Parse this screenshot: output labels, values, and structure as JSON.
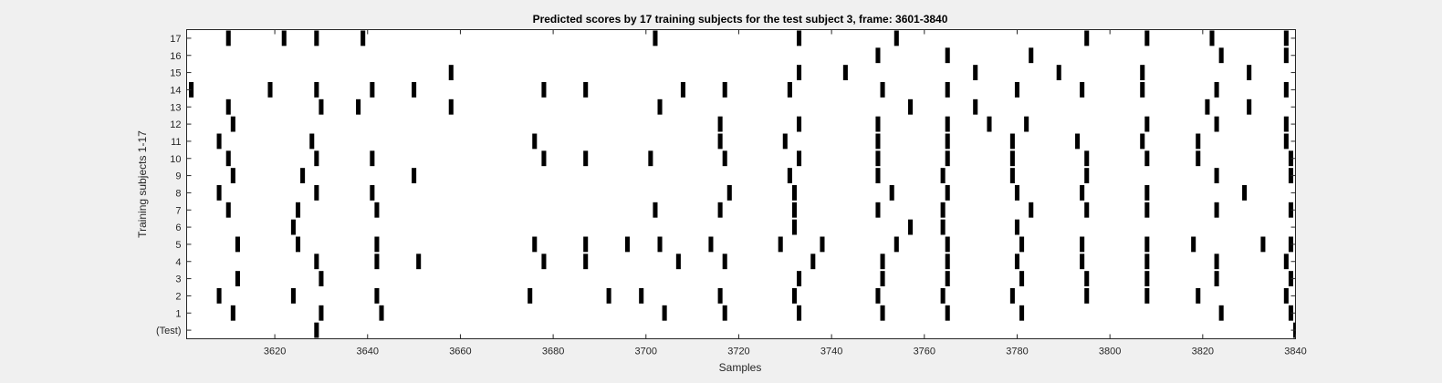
{
  "chart_data": {
    "type": "heatmap",
    "title": "Predicted scores by 17 training subjects for the test subject 3, frame: 3601-3840",
    "xlabel": "Samples",
    "ylabel": "Training subjects 1-17",
    "xlim": [
      3601,
      3840
    ],
    "x_ticks": [
      3620,
      3640,
      3660,
      3680,
      3700,
      3720,
      3740,
      3760,
      3780,
      3800,
      3820,
      3840
    ],
    "y_categories": [
      "(Test)",
      "1",
      "2",
      "3",
      "4",
      "5",
      "6",
      "7",
      "8",
      "9",
      "10",
      "11",
      "12",
      "13",
      "14",
      "15",
      "16",
      "17"
    ],
    "background_color": "#ffffff",
    "mark_color": "#000000",
    "series": [
      {
        "row": "(Test)",
        "x": [
          3629,
          3840
        ]
      },
      {
        "row": "1",
        "x": [
          3611,
          3630,
          3643,
          3704,
          3717,
          3733,
          3751,
          3765,
          3781,
          3824,
          3839
        ]
      },
      {
        "row": "2",
        "x": [
          3608,
          3624,
          3642,
          3675,
          3692,
          3699,
          3716,
          3732,
          3750,
          3764,
          3779,
          3795,
          3808,
          3819,
          3838
        ]
      },
      {
        "row": "3",
        "x": [
          3612,
          3630,
          3733,
          3751,
          3765,
          3781,
          3795,
          3808,
          3823,
          3839
        ]
      },
      {
        "row": "4",
        "x": [
          3629,
          3642,
          3651,
          3678,
          3687,
          3707,
          3717,
          3736,
          3751,
          3765,
          3780,
          3794,
          3808,
          3823,
          3838
        ]
      },
      {
        "row": "5",
        "x": [
          3612,
          3625,
          3642,
          3676,
          3687,
          3696,
          3703,
          3714,
          3729,
          3738,
          3754,
          3765,
          3781,
          3794,
          3808,
          3818,
          3833,
          3839
        ]
      },
      {
        "row": "6",
        "x": [
          3624,
          3732,
          3757,
          3764,
          3780
        ]
      },
      {
        "row": "7",
        "x": [
          3610,
          3625,
          3642,
          3702,
          3716,
          3732,
          3750,
          3764,
          3783,
          3795,
          3808,
          3823,
          3839
        ]
      },
      {
        "row": "8",
        "x": [
          3608,
          3629,
          3641,
          3718,
          3732,
          3753,
          3765,
          3780,
          3794,
          3808,
          3829
        ]
      },
      {
        "row": "9",
        "x": [
          3611,
          3626,
          3650,
          3731,
          3750,
          3764,
          3779,
          3795,
          3823,
          3839
        ]
      },
      {
        "row": "10",
        "x": [
          3610,
          3629,
          3641,
          3678,
          3687,
          3701,
          3717,
          3733,
          3750,
          3765,
          3779,
          3795,
          3808,
          3819,
          3839
        ]
      },
      {
        "row": "11",
        "x": [
          3608,
          3628,
          3676,
          3716,
          3730,
          3750,
          3765,
          3779,
          3793,
          3807,
          3819,
          3838
        ]
      },
      {
        "row": "12",
        "x": [
          3611,
          3716,
          3733,
          3750,
          3765,
          3774,
          3782,
          3808,
          3823,
          3838
        ]
      },
      {
        "row": "13",
        "x": [
          3610,
          3630,
          3638,
          3658,
          3703,
          3757,
          3771,
          3821,
          3830
        ]
      },
      {
        "row": "14",
        "x": [
          3602,
          3619,
          3629,
          3641,
          3650,
          3678,
          3687,
          3708,
          3717,
          3731,
          3751,
          3765,
          3780,
          3794,
          3807,
          3823,
          3838
        ]
      },
      {
        "row": "15",
        "x": [
          3658,
          3733,
          3743,
          3771,
          3789,
          3807,
          3830
        ]
      },
      {
        "row": "16",
        "x": [
          3750,
          3765,
          3783,
          3824,
          3838
        ]
      },
      {
        "row": "17",
        "x": [
          3610,
          3622,
          3629,
          3639,
          3702,
          3733,
          3754,
          3795,
          3808,
          3822,
          3838
        ]
      }
    ]
  }
}
